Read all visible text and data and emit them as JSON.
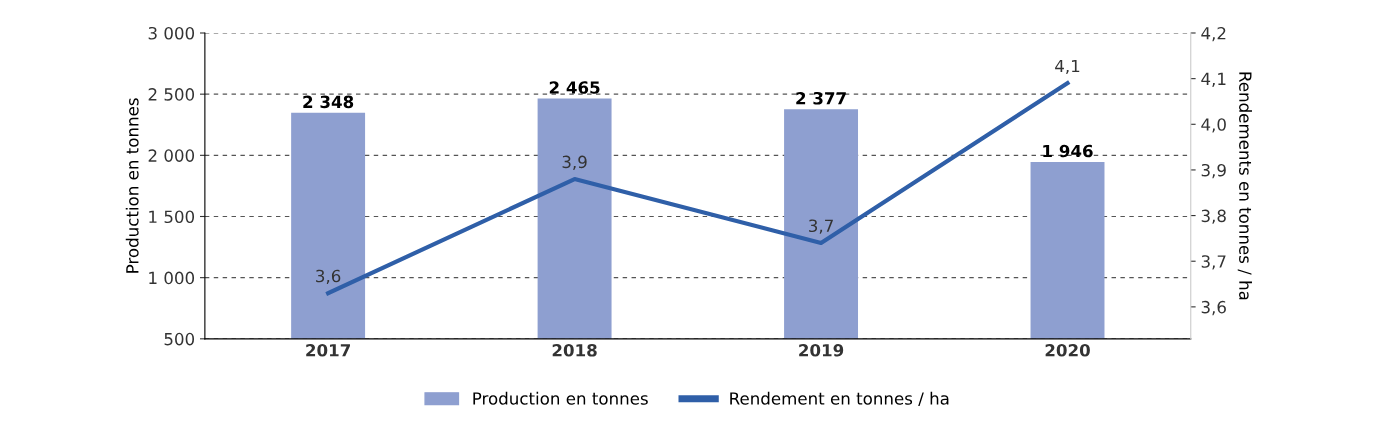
{
  "chart_data": {
    "type": "bar",
    "categories": [
      "2017",
      "2018",
      "2019",
      "2020"
    ],
    "ylabel": "Production en tonnes",
    "y2label": "Rendements en tonnes / ha",
    "series": [
      {
        "name": "Production en tonnes",
        "color": "#8e9fd0",
        "values": [
          2348,
          2465,
          2377,
          1946
        ],
        "value_labels": [
          "2 348",
          "2 465",
          "2 377",
          "1 946"
        ]
      },
      {
        "name": "Rendement en tonnes / ha",
        "type": "line",
        "axis": "y2",
        "color": "#2f5fa8",
        "values": [
          3.63,
          3.88,
          3.74,
          4.09
        ],
        "value_labels": [
          "3,6",
          "3,9",
          "3,7",
          "4,1"
        ]
      }
    ],
    "ylim": [
      500,
      3000
    ],
    "yticks": [
      500,
      {
        "value": 1000,
        "label": "1 000"
      },
      {
        "value": 1500,
        "label": "1 500"
      },
      {
        "value": 2000,
        "label": "2 000"
      },
      {
        "value": 2500,
        "label": "2 500"
      },
      {
        "value": 3000,
        "label": "3 000"
      }
    ],
    "y2lim": [
      3.53,
      4.2
    ],
    "y2ticks": [
      {
        "value": 3.6,
        "label": "3,6"
      },
      {
        "value": 3.7,
        "label": "3,7"
      },
      {
        "value": 3.8,
        "label": "3,8"
      },
      {
        "value": 3.9,
        "label": "3,9"
      },
      {
        "value": 4.0,
        "label": "4,0"
      },
      {
        "value": 4.1,
        "label": "4,1"
      },
      {
        "value": 4.2,
        "label": "4,2"
      }
    ],
    "grid": "y",
    "legend": "bottom",
    "line_style": "solid",
    "marker": "none"
  }
}
